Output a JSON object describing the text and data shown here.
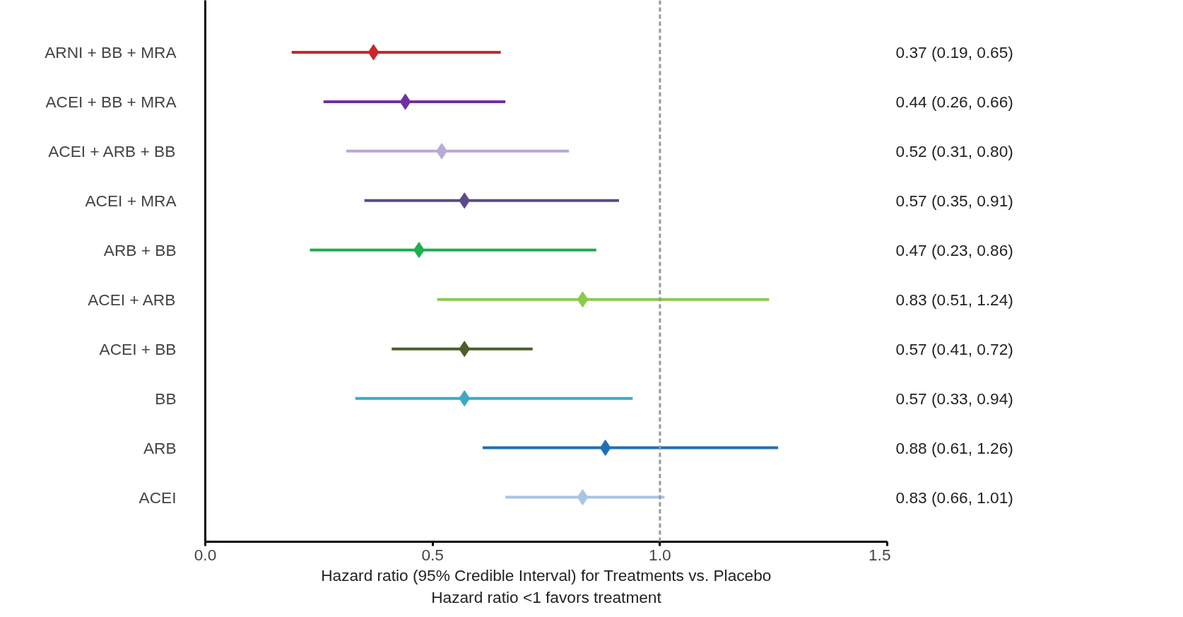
{
  "chart_data": {
    "type": "scatter",
    "orientation": "horizontal",
    "marker": "diamond",
    "grid": false,
    "legend": false,
    "xlabel": "Hazard ratio (95% Credible Interval) for Treatments vs. Placebo\nHazard ratio <1 favors treatment",
    "categories": [
      "ARNI + BB + MRA",
      "ACEI + BB + MRA",
      "ACEI + ARB + BB",
      "ACEI + MRA",
      "ARB + BB",
      "ACEI + ARB",
      "ACEI + BB",
      "BB",
      "ARB",
      "ACEI"
    ],
    "values": [
      0.37,
      0.44,
      0.52,
      0.57,
      0.47,
      0.83,
      0.57,
      0.57,
      0.88,
      0.83
    ],
    "errors": [
      [
        0.19,
        0.65
      ],
      [
        0.26,
        0.66
      ],
      [
        0.31,
        0.8
      ],
      [
        0.35,
        0.91
      ],
      [
        0.23,
        0.86
      ],
      [
        0.51,
        1.24
      ],
      [
        0.41,
        0.72
      ],
      [
        0.33,
        0.94
      ],
      [
        0.61,
        1.26
      ],
      [
        0.66,
        1.01
      ]
    ],
    "colors": [
      "#c8282d",
      "#7030a0",
      "#b9a9d6",
      "#5b4a8a",
      "#1db04b",
      "#8dc84f",
      "#4b5e2a",
      "#3aaac4",
      "#1f6fb5",
      "#a9c4e6"
    ],
    "value_labels": [
      "0.37 (0.19, 0.65)",
      "0.44 (0.26, 0.66)",
      "0.52 (0.31, 0.80)",
      "0.57 (0.35, 0.91)",
      "0.47 (0.23, 0.86)",
      "0.83 (0.51, 1.24)",
      "0.57 (0.41, 0.72)",
      "0.57 (0.33, 0.94)",
      "0.88 (0.61, 1.26)",
      "0.83 (0.66, 1.01)"
    ],
    "xlim": [
      0,
      1.5
    ],
    "xticks": [
      {
        "value": 0,
        "label": "0.0"
      },
      {
        "value": 0.5,
        "label": "0.5"
      },
      {
        "value": 1.0,
        "label": "1.0"
      },
      {
        "value": 1.5,
        "label": "1.5"
      }
    ],
    "ref_lines": [
      {
        "axis": "x",
        "value": 1.0,
        "color": "#999999",
        "line_style": "dashed"
      }
    ]
  }
}
